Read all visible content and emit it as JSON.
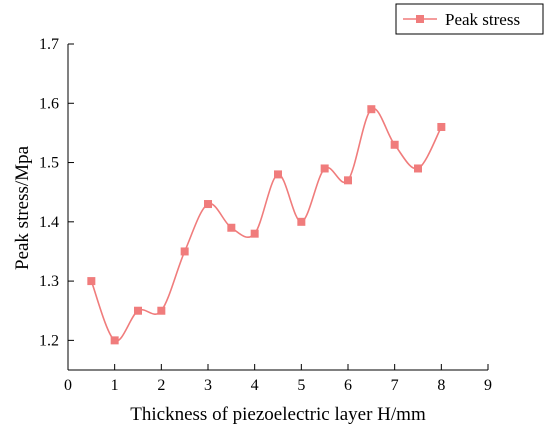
{
  "chart_data": {
    "type": "line",
    "title": "",
    "xlabel": "Thickness of piezoelectric layer H/mm",
    "ylabel": "Peak stress/Mpa",
    "xlim": [
      0,
      9
    ],
    "ylim": [
      1.15,
      1.7
    ],
    "x_ticks": [
      "0",
      "1",
      "2",
      "3",
      "4",
      "5",
      "6",
      "7",
      "8",
      "9"
    ],
    "y_ticks": [
      "1.2",
      "1.3",
      "1.4",
      "1.5",
      "1.6",
      "1.7"
    ],
    "legend_position": "top-right",
    "grid": false,
    "line_style": "smooth",
    "marker": "square",
    "series": [
      {
        "name": "Peak stress",
        "color": "#f07c7c",
        "x": [
          0.5,
          1.0,
          1.5,
          2.0,
          2.5,
          3.0,
          3.5,
          4.0,
          4.5,
          5.0,
          5.5,
          6.0,
          6.5,
          7.0,
          7.5,
          8.0
        ],
        "y": [
          1.3,
          1.2,
          1.25,
          1.25,
          1.35,
          1.43,
          1.39,
          1.38,
          1.48,
          1.4,
          1.49,
          1.47,
          1.59,
          1.53,
          1.49,
          1.56
        ]
      }
    ]
  }
}
